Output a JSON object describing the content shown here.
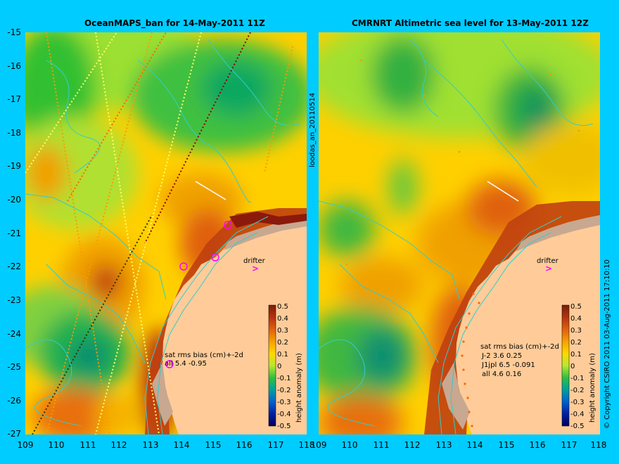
{
  "left_map": {
    "title": "OceanMAPS_ban for 14-May-2011 11Z",
    "drifter_label": "drifter",
    "stats": [
      "sat rms bias (cm)+-2d",
      "all 5.4 -0.95"
    ]
  },
  "right_map": {
    "title": "CMRNRT Altimetric sea level  for 13-May-2011 12Z",
    "drifter_label": "drifter",
    "stats": [
      "sat rms bias (cm)+-2d",
      "J-2   3.6 0.25",
      "J1jpl 6.5 -0.091",
      "all 4.6 0.16"
    ]
  },
  "y_axis_labels": [
    "-15",
    "-16",
    "-17",
    "-18",
    "-19",
    "-20",
    "-21",
    "-22",
    "-23",
    "-24",
    "-25",
    "-26",
    "-27"
  ],
  "x_axis_labels": [
    "109",
    "110",
    "111",
    "112",
    "113",
    "114",
    "115",
    "116",
    "117",
    "118"
  ],
  "colorbar": {
    "labels": [
      "0.5",
      "0.4",
      "0.3",
      "0.2",
      "0.1",
      "0",
      "-0.1",
      "-0.2",
      "-0.3",
      "-0.4",
      "-0.5"
    ],
    "title": "height anomaly (m)"
  },
  "side_label": "loodas_an_20110514",
  "copyright": "© Copyright CSIRO 2011   03-Aug-2011 17:10:10",
  "colors": {
    "background": "#00ccff",
    "land": "#ffcc99",
    "coast_shelf": "#c8a890",
    "bathymetry_contour": "#33cccc",
    "drifter": "#ff00ff"
  }
}
